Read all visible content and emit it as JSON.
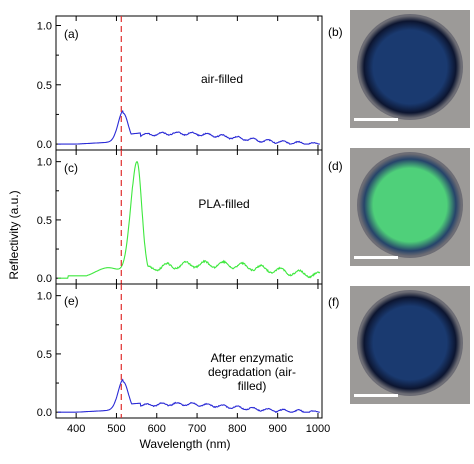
{
  "chart_data": {
    "type": "line",
    "xlabel": "Wavelength (nm)",
    "ylabel": "Reflectivity (a.u.)",
    "xlim": [
      350,
      1010
    ],
    "x_ticks": [
      400,
      500,
      600,
      700,
      800,
      900,
      1000
    ],
    "y_ticks": [
      0.0,
      0.5,
      1.0
    ],
    "reference_line_x": 512,
    "panels": [
      {
        "letter": "(a)",
        "annotation": "air-filled",
        "color": "#2b2bd6",
        "ylim": [
          -0.05,
          1.08
        ],
        "peak_x": 517,
        "peak_y": 0.26,
        "tail_y": 0.09
      },
      {
        "letter": "(c)",
        "annotation": "PLA-filled",
        "color": "#3ee83e",
        "ylim": [
          -0.05,
          1.1
        ],
        "peak_x": 551,
        "peak_y": 1.0,
        "tail_y": 0.12
      },
      {
        "letter": "(e)",
        "annotation": "After enzymatic degradation (air-filled)",
        "annotation_lines": [
          "After enzymatic",
          "degradation (air-",
          "filled)"
        ],
        "color": "#2b2bd6",
        "ylim": [
          -0.05,
          1.1
        ],
        "peak_x": 517,
        "peak_y": 0.26,
        "tail_y": 0.07
      }
    ]
  },
  "images": [
    {
      "letter": "(b)",
      "description": "dark-blue",
      "center_color": "#1a3a70",
      "rim_color": "#0c1530"
    },
    {
      "letter": "(d)",
      "description": "green",
      "center_color": "#4fd07a",
      "rim_color": "#26446a"
    },
    {
      "letter": "(f)",
      "description": "dark-blue",
      "center_color": "#1a3a70",
      "rim_color": "#0c1530"
    }
  ]
}
